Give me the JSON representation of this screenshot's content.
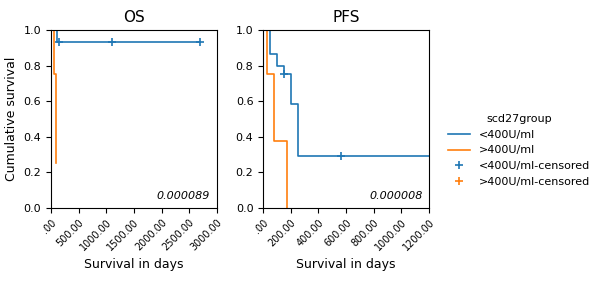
{
  "chart_data": [
    {
      "type": "step",
      "title": "OS",
      "x_label": "Survival in days",
      "y_label": "Cumulative survival",
      "annotations": [
        "0.000089"
      ],
      "series": [
        {
          "name": "<400U/ml",
          "type": "step",
          "color": "#1f77b4",
          "line_style": "solid",
          "x": [
            0,
            100,
            100,
            150,
            150,
            2700
          ],
          "values": [
            1.0,
            1.0,
            0.933,
            0.933,
            0.933,
            0.933
          ]
        },
        {
          "name": ">400U/ml",
          "type": "step",
          "color": "#ff7f0e",
          "line_style": "solid",
          "x": [
            0,
            60,
            60,
            90,
            90
          ],
          "values": [
            1.0,
            0.75,
            0.75,
            0.25,
            0.25
          ]
        },
        {
          "name": "<400U/ml-censored",
          "type": "scatter",
          "color": "#1f77b4",
          "marker": "plus",
          "x": [
            150,
            1100,
            2700
          ],
          "values": [
            0.933,
            0.933,
            0.933
          ]
        },
        {
          "name": ">400U/ml-censored",
          "type": "scatter",
          "color": "#ff7f0e",
          "marker": "plus",
          "x": [],
          "values": []
        }
      ],
      "xlim": [
        0,
        3000
      ],
      "xticks": [
        {
          "value": 0,
          "label": ".00"
        },
        {
          "value": 500,
          "label": "500.00"
        },
        {
          "value": 1000,
          "label": "1000.00"
        },
        {
          "value": 1500,
          "label": "1500.00"
        },
        {
          "value": 2000,
          "label": "2000.00"
        },
        {
          "value": 2500,
          "label": "2500.00"
        },
        {
          "value": 3000,
          "label": "3000.00"
        }
      ],
      "ylim": [
        0.0,
        1.0
      ],
      "yticks": [
        0.0,
        0.2,
        0.4,
        0.6,
        0.8,
        1.0
      ]
    },
    {
      "type": "step",
      "title": "PFS",
      "x_label": "Survival in days",
      "annotations": [
        "0.000008"
      ],
      "legend": "right",
      "legend_title": "scd27group",
      "series": [
        {
          "name": "<400U/ml",
          "type": "step",
          "color": "#1f77b4",
          "line_style": "solid",
          "x": [
            0,
            50,
            50,
            100,
            100,
            150,
            150,
            200,
            200,
            250,
            250,
            500,
            500,
            560,
            560,
            1200
          ],
          "values": [
            1.0,
            1.0,
            0.867,
            0.867,
            0.8,
            0.8,
            0.75,
            0.75,
            0.583,
            0.583,
            0.29,
            0.29,
            0.29,
            0.29,
            0.29,
            0.29
          ]
        },
        {
          "name": ">400U/ml",
          "type": "step",
          "color": "#ff7f0e",
          "line_style": "solid",
          "x": [
            0,
            30,
            30,
            80,
            80,
            110,
            110,
            170,
            170
          ],
          "values": [
            1.0,
            1.0,
            0.75,
            0.75,
            0.375,
            0.375,
            0.375,
            0.375,
            0.0
          ]
        },
        {
          "name": "<400U/ml-censored",
          "type": "scatter",
          "color": "#1f77b4",
          "marker": "plus",
          "x": [
            150,
            560
          ],
          "values": [
            0.75,
            0.29
          ]
        },
        {
          "name": ">400U/ml-censored",
          "type": "scatter",
          "color": "#ff7f0e",
          "marker": "plus",
          "x": [],
          "values": []
        }
      ],
      "xlim": [
        0,
        1200
      ],
      "xticks": [
        {
          "value": 0,
          "label": ".00"
        },
        {
          "value": 200,
          "label": "200.00"
        },
        {
          "value": 400,
          "label": "400.00"
        },
        {
          "value": 600,
          "label": "600.00"
        },
        {
          "value": 800,
          "label": "800.00"
        },
        {
          "value": 1000,
          "label": "1000.00"
        },
        {
          "value": 1200,
          "label": "1200.00"
        }
      ],
      "ylim": [
        0.0,
        1.0
      ],
      "yticks": [
        0.0,
        0.2,
        0.4,
        0.6,
        0.8,
        1.0
      ]
    }
  ]
}
